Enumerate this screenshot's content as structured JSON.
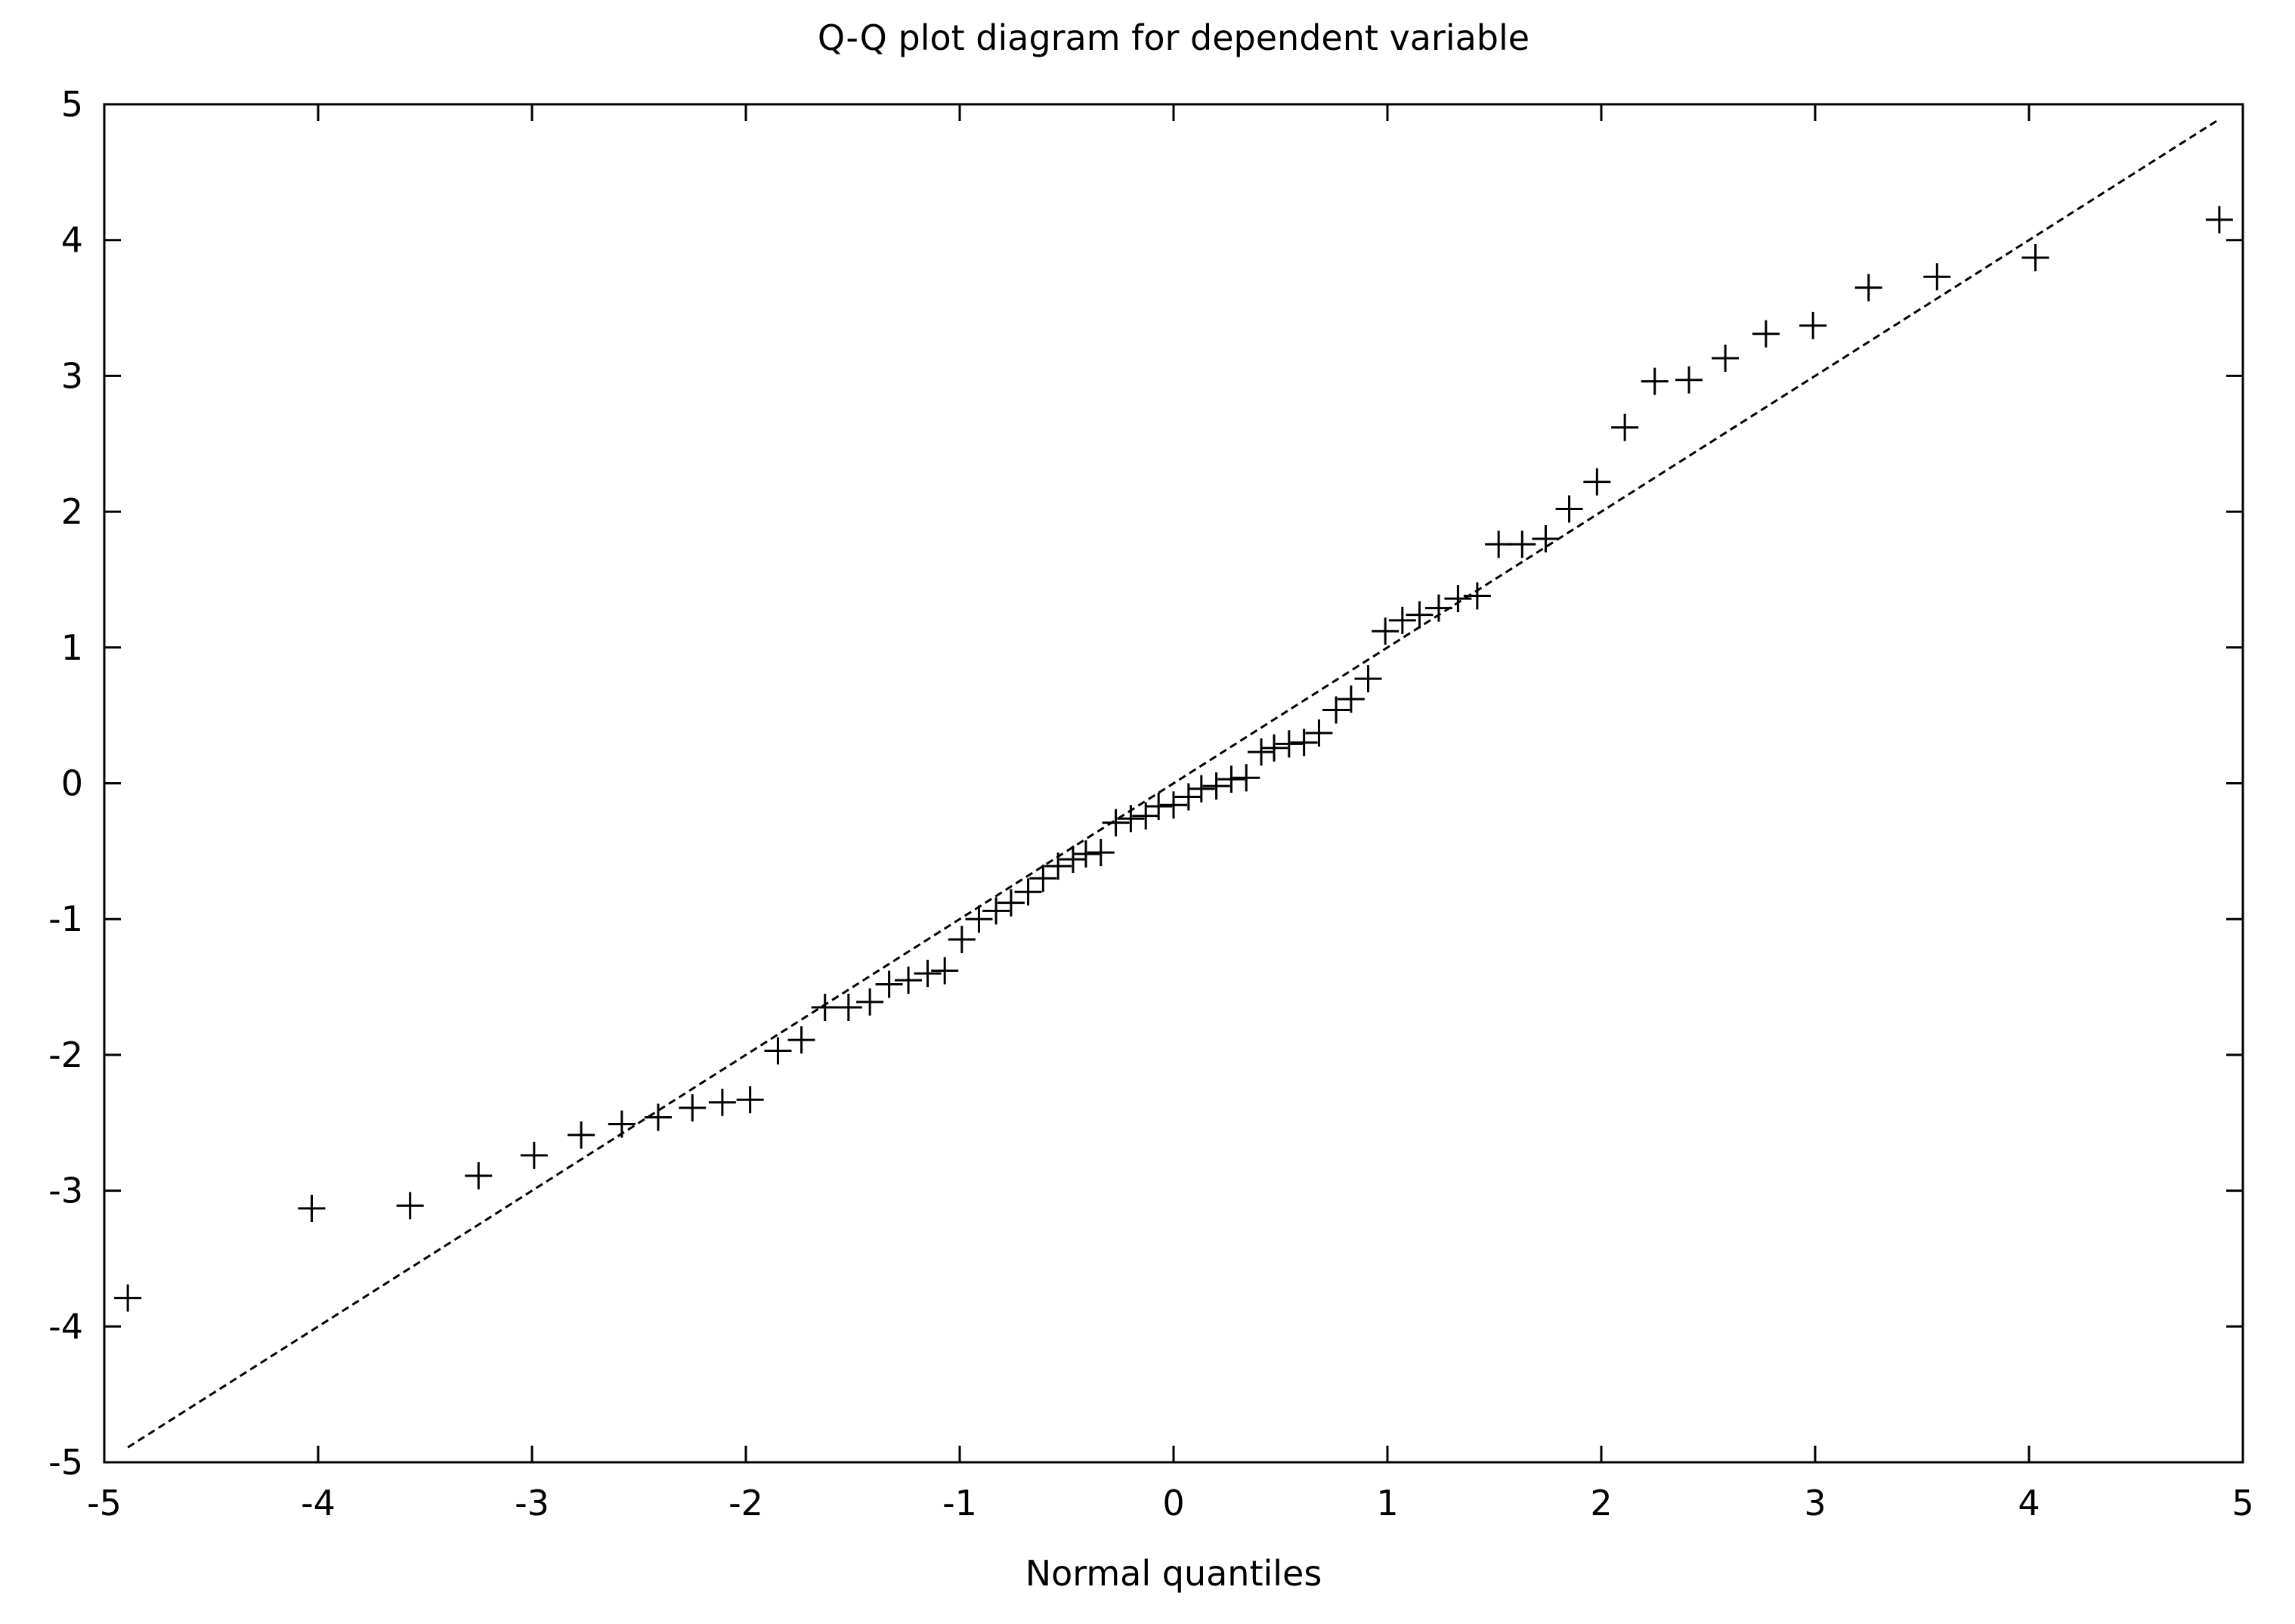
{
  "chart_data": {
    "type": "scatter",
    "title": "Q-Q plot diagram for dependent variable",
    "xlabel": "Normal quantiles",
    "ylabel": "",
    "xlim": [
      -5,
      5
    ],
    "ylim": [
      -5,
      5
    ],
    "xticks": [
      -5,
      -4,
      -3,
      -2,
      -1,
      0,
      1,
      2,
      3,
      4,
      5
    ],
    "yticks": [
      -5,
      -4,
      -3,
      -2,
      -1,
      0,
      1,
      2,
      3,
      4,
      5
    ],
    "grid": false,
    "legend": "none",
    "marker": "plus",
    "reference_line": {
      "style": "dashed",
      "from": [
        -4.89,
        -4.89
      ],
      "to": [
        4.89,
        4.89
      ]
    },
    "points": [
      [
        -4.89,
        -3.79
      ],
      [
        -4.03,
        -3.13
      ],
      [
        -3.57,
        -3.11
      ],
      [
        -3.25,
        -2.89
      ],
      [
        -2.99,
        -2.74
      ],
      [
        -2.77,
        -2.59
      ],
      [
        -2.58,
        -2.51
      ],
      [
        -2.41,
        -2.46
      ],
      [
        -2.25,
        -2.39
      ],
      [
        -2.11,
        -2.35
      ],
      [
        -1.98,
        -2.33
      ],
      [
        -1.85,
        -1.97
      ],
      [
        -1.74,
        -1.89
      ],
      [
        -1.63,
        -1.65
      ],
      [
        -1.52,
        -1.65
      ],
      [
        -1.42,
        -1.61
      ],
      [
        -1.33,
        -1.48
      ],
      [
        -1.24,
        -1.45
      ],
      [
        -1.15,
        -1.4
      ],
      [
        -1.07,
        -1.38
      ],
      [
        -0.99,
        -1.15
      ],
      [
        -0.91,
        -1.0
      ],
      [
        -0.83,
        -0.94
      ],
      [
        -0.76,
        -0.88
      ],
      [
        -0.68,
        -0.8
      ],
      [
        -0.61,
        -0.7
      ],
      [
        -0.54,
        -0.61
      ],
      [
        -0.47,
        -0.56
      ],
      [
        -0.41,
        -0.52
      ],
      [
        -0.34,
        -0.51
      ],
      [
        -0.27,
        -0.29
      ],
      [
        -0.2,
        -0.26
      ],
      [
        -0.13,
        -0.24
      ],
      [
        -0.07,
        -0.17
      ],
      [
        0.0,
        -0.16
      ],
      [
        0.07,
        -0.1
      ],
      [
        0.13,
        -0.04
      ],
      [
        0.2,
        -0.02
      ],
      [
        0.27,
        0.03
      ],
      [
        0.34,
        0.04
      ],
      [
        0.41,
        0.23
      ],
      [
        0.47,
        0.26
      ],
      [
        0.54,
        0.29
      ],
      [
        0.61,
        0.3
      ],
      [
        0.68,
        0.37
      ],
      [
        0.76,
        0.54
      ],
      [
        0.83,
        0.62
      ],
      [
        0.91,
        0.77
      ],
      [
        0.99,
        1.12
      ],
      [
        1.07,
        1.2
      ],
      [
        1.15,
        1.24
      ],
      [
        1.24,
        1.29
      ],
      [
        1.33,
        1.36
      ],
      [
        1.42,
        1.38
      ],
      [
        1.52,
        1.76
      ],
      [
        1.63,
        1.76
      ],
      [
        1.74,
        1.8
      ],
      [
        1.85,
        2.02
      ],
      [
        1.98,
        2.22
      ],
      [
        2.11,
        2.62
      ],
      [
        2.25,
        2.96
      ],
      [
        2.41,
        2.97
      ],
      [
        2.58,
        3.13
      ],
      [
        2.77,
        3.31
      ],
      [
        2.99,
        3.37
      ],
      [
        3.25,
        3.65
      ],
      [
        3.57,
        3.73
      ],
      [
        4.03,
        3.87
      ],
      [
        4.89,
        4.15
      ]
    ]
  }
}
